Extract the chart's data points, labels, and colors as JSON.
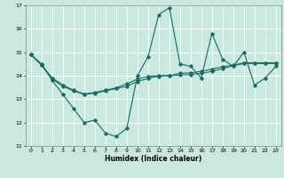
{
  "title": "",
  "xlabel": "Humidex (Indice chaleur)",
  "ylabel": "",
  "xlim": [
    -0.5,
    23.5
  ],
  "ylim": [
    11,
    17
  ],
  "yticks": [
    11,
    12,
    13,
    14,
    15,
    16,
    17
  ],
  "xticks": [
    0,
    1,
    2,
    3,
    4,
    5,
    6,
    7,
    8,
    9,
    10,
    11,
    12,
    13,
    14,
    15,
    16,
    17,
    18,
    19,
    20,
    21,
    22,
    23
  ],
  "bg_color": "#c8e8e0",
  "line_color": "#1a6b60",
  "grid_color": "#ffffff",
  "series1_x": [
    0,
    1,
    2,
    3,
    4,
    5,
    6,
    7,
    8,
    9,
    10,
    11,
    12,
    13,
    14,
    15,
    16,
    17,
    18,
    19,
    20,
    21,
    22,
    23
  ],
  "series1_y": [
    14.9,
    14.5,
    13.8,
    13.2,
    12.6,
    12.0,
    12.1,
    11.55,
    11.4,
    11.75,
    14.0,
    14.8,
    16.6,
    16.9,
    14.5,
    14.4,
    13.9,
    15.8,
    14.7,
    14.4,
    15.0,
    13.6,
    13.9,
    14.4
  ],
  "series2_x": [
    0,
    1,
    2,
    3,
    4,
    5,
    6,
    7,
    8,
    9,
    10,
    11,
    12,
    13,
    14,
    15,
    16,
    17,
    18,
    19,
    20,
    21,
    22,
    23
  ],
  "series2_y": [
    14.9,
    14.45,
    13.85,
    13.55,
    13.35,
    13.2,
    13.25,
    13.35,
    13.45,
    13.55,
    13.75,
    13.88,
    13.98,
    14.0,
    14.1,
    14.12,
    14.18,
    14.28,
    14.38,
    14.45,
    14.55,
    14.55,
    14.55,
    14.55
  ],
  "series3_x": [
    0,
    1,
    2,
    3,
    4,
    5,
    6,
    7,
    8,
    9,
    10,
    11,
    12,
    13,
    14,
    15,
    16,
    17,
    18,
    19,
    20,
    21,
    22,
    23
  ],
  "series3_y": [
    14.9,
    14.45,
    13.9,
    13.6,
    13.38,
    13.22,
    13.28,
    13.38,
    13.48,
    13.65,
    13.85,
    13.97,
    14.0,
    14.0,
    14.02,
    14.05,
    14.1,
    14.18,
    14.3,
    14.42,
    14.52,
    14.52,
    14.52,
    14.52
  ]
}
